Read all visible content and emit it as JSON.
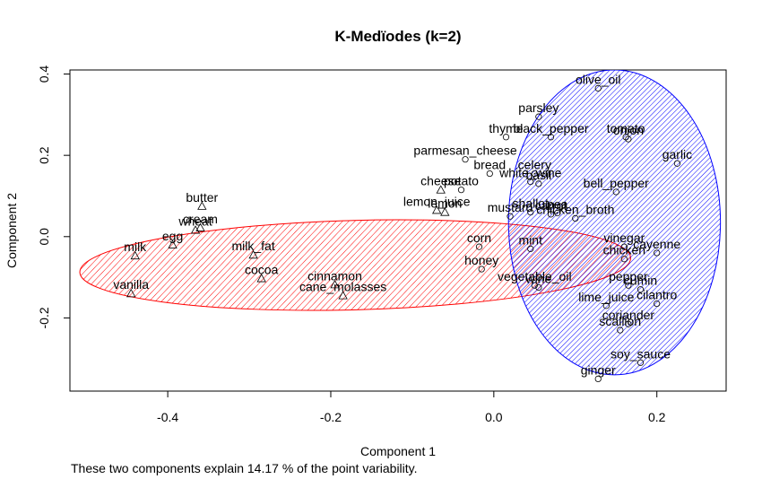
{
  "chart_data": {
    "type": "scatter",
    "title": "K-Medïodes (k=2)",
    "xlabel": "Component 1",
    "ylabel": "Component 2",
    "caption": "These two components explain 14.17 % of the point variability.",
    "xlim": [
      -0.52,
      0.285
    ],
    "ylim": [
      -0.38,
      0.41
    ],
    "xticks": [
      -0.4,
      -0.2,
      0.0,
      0.2
    ],
    "yticks": [
      -0.2,
      0.0,
      0.2,
      0.4
    ],
    "xtick_labels": [
      "-0.4",
      "-0.2",
      "0.0",
      "0.2"
    ],
    "ytick_labels": [
      "-0.2",
      "0.0",
      "0.2",
      "0.4"
    ],
    "clusters": [
      {
        "id": 1,
        "marker": "triangle",
        "color": "#ff0000",
        "ellipse": {
          "cx": -0.17,
          "cy": -0.07,
          "rx": 0.338,
          "ry": 0.11,
          "angle_deg": 1.5
        },
        "points": [
          {
            "name": "butter",
            "x": -0.358,
            "y": 0.075
          },
          {
            "name": "cream",
            "x": -0.36,
            "y": 0.022
          },
          {
            "name": "wheat",
            "x": -0.366,
            "y": 0.016
          },
          {
            "name": "egg",
            "x": -0.394,
            "y": -0.02
          },
          {
            "name": "milk",
            "x": -0.44,
            "y": -0.047
          },
          {
            "name": "vanilla",
            "x": -0.445,
            "y": -0.14
          },
          {
            "name": "milk_fat",
            "x": -0.295,
            "y": -0.045
          },
          {
            "name": "cocoa",
            "x": -0.285,
            "y": -0.103
          },
          {
            "name": "cinnamon",
            "x": -0.195,
            "y": -0.118
          },
          {
            "name": "cane_molasses",
            "x": -0.185,
            "y": -0.145
          },
          {
            "name": "cheese",
            "x": -0.065,
            "y": 0.115
          },
          {
            "name": "lemon_juice",
            "x": -0.07,
            "y": 0.065
          },
          {
            "name": "lemon",
            "x": -0.06,
            "y": 0.06
          }
        ]
      },
      {
        "id": 2,
        "marker": "circle",
        "color": "#0000ff",
        "ellipse": {
          "cx": 0.148,
          "cy": 0.035,
          "rx": 0.13,
          "ry": 0.375,
          "angle_deg": 0
        },
        "points": [
          {
            "name": "olive_oil",
            "x": 0.128,
            "y": 0.365
          },
          {
            "name": "parsley",
            "x": 0.055,
            "y": 0.295
          },
          {
            "name": "thyme",
            "x": 0.015,
            "y": 0.245
          },
          {
            "name": "black_pepper",
            "x": 0.07,
            "y": 0.245
          },
          {
            "name": "tomato",
            "x": 0.162,
            "y": 0.245
          },
          {
            "name": "onion",
            "x": 0.165,
            "y": 0.24
          },
          {
            "name": "garlic",
            "x": 0.225,
            "y": 0.18
          },
          {
            "name": "parmesan_cheese",
            "x": -0.035,
            "y": 0.19
          },
          {
            "name": "bread",
            "x": -0.005,
            "y": 0.155
          },
          {
            "name": "celery",
            "x": 0.05,
            "y": 0.155
          },
          {
            "name": "white_wine",
            "x": 0.045,
            "y": 0.135
          },
          {
            "name": "basil",
            "x": 0.055,
            "y": 0.13
          },
          {
            "name": "bell_pepper",
            "x": 0.15,
            "y": 0.11
          },
          {
            "name": "potato",
            "x": -0.04,
            "y": 0.115
          },
          {
            "name": "shallot",
            "x": 0.045,
            "y": 0.06
          },
          {
            "name": "carrot",
            "x": 0.07,
            "y": 0.055
          },
          {
            "name": "pea",
            "x": 0.078,
            "y": 0.058
          },
          {
            "name": "mustard",
            "x": 0.02,
            "y": 0.05
          },
          {
            "name": "chicken_broth",
            "x": 0.1,
            "y": 0.045
          },
          {
            "name": "corn",
            "x": -0.018,
            "y": -0.025
          },
          {
            "name": "mint",
            "x": 0.045,
            "y": -0.03
          },
          {
            "name": "vinegar",
            "x": 0.16,
            "y": -0.025
          },
          {
            "name": "cayenne",
            "x": 0.2,
            "y": -0.04
          },
          {
            "name": "chicken",
            "x": 0.16,
            "y": -0.055
          },
          {
            "name": "honey",
            "x": -0.015,
            "y": -0.08
          },
          {
            "name": "vegetable_oil",
            "x": 0.05,
            "y": -0.12
          },
          {
            "name": "wine",
            "x": 0.055,
            "y": -0.125
          },
          {
            "name": "pepper",
            "x": 0.165,
            "y": -0.12
          },
          {
            "name": "cumin",
            "x": 0.18,
            "y": -0.13
          },
          {
            "name": "lime_juice",
            "x": 0.138,
            "y": -0.17
          },
          {
            "name": "cilantro",
            "x": 0.2,
            "y": -0.165
          },
          {
            "name": "coriander",
            "x": 0.165,
            "y": -0.215
          },
          {
            "name": "scallion",
            "x": 0.155,
            "y": -0.23
          },
          {
            "name": "soy_sauce",
            "x": 0.18,
            "y": -0.31
          },
          {
            "name": "ginger",
            "x": 0.128,
            "y": -0.35
          }
        ]
      }
    ]
  }
}
